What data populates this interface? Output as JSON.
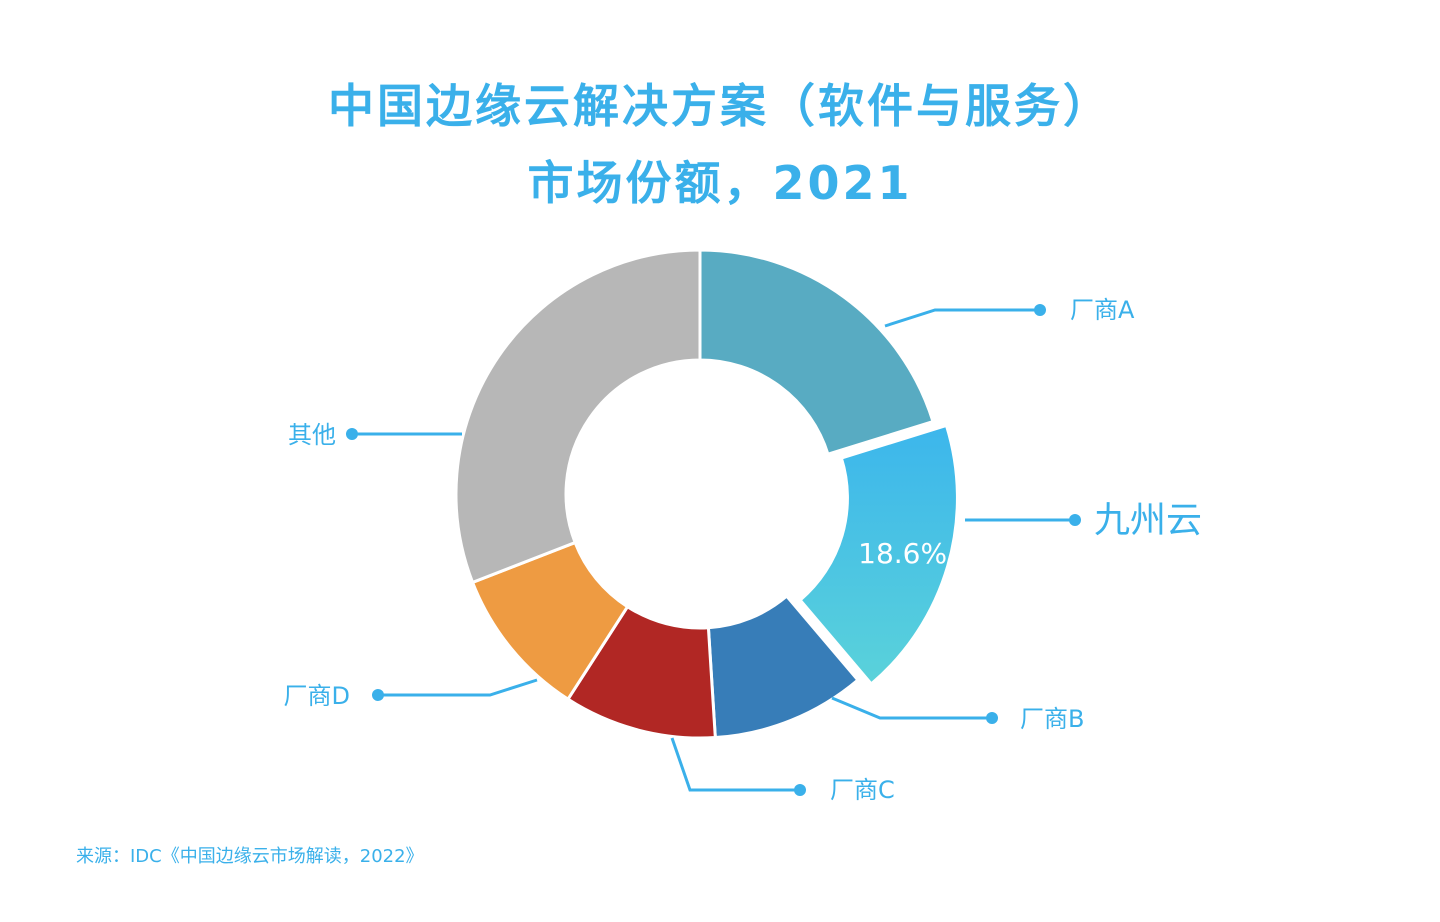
{
  "chart_data": {
    "type": "pie",
    "variant": "donut",
    "title_lines": [
      "中国边缘云解决方案（软件与服务）",
      "市场份额，2021"
    ],
    "slices": [
      {
        "label": "厂商A",
        "value": 20.2,
        "color": "#58abc2"
      },
      {
        "label": "九州云",
        "value": 18.6,
        "color": "#45c2e8",
        "value_label": "18.6%",
        "highlight": true
      },
      {
        "label": "厂商B",
        "value": 10.2,
        "color": "#377db8"
      },
      {
        "label": "厂商C",
        "value": 10.1,
        "color": "#b12724"
      },
      {
        "label": "厂商D",
        "value": 10.0,
        "color": "#ee9b42"
      },
      {
        "label": "其他",
        "value": 30.9,
        "color": "#b7b7b7"
      }
    ],
    "legend": "none"
  },
  "source": "来源：IDC《中国边缘云市场解读，2022》",
  "colors": {
    "accent": "#3ab0ea",
    "background": "#ffffff"
  }
}
